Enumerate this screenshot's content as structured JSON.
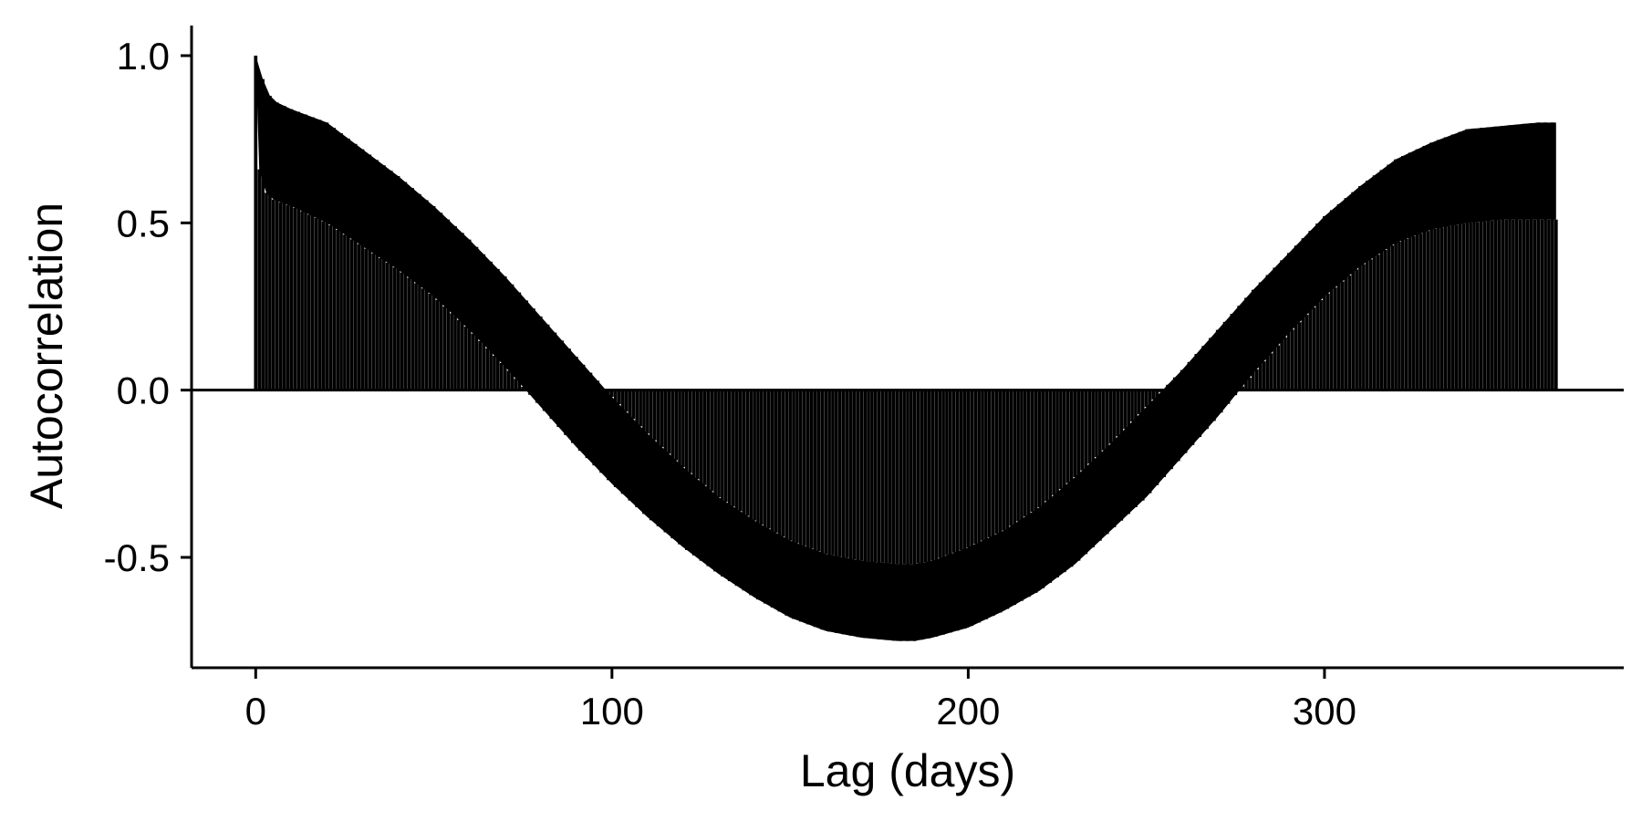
{
  "chart_data": {
    "type": "bar",
    "title": "",
    "xlabel": "Lag (days)",
    "ylabel": "Autocorrelation",
    "xlim": [
      -18,
      384
    ],
    "ylim": [
      -0.83,
      1.09
    ],
    "grid": false,
    "legend": "none",
    "bar_color": "#000000",
    "zero_line": 0,
    "x_ticks": [
      0,
      100,
      200,
      300
    ],
    "x_tick_labels": [
      "0",
      "100",
      "200",
      "300"
    ],
    "y_ticks": [
      -0.5,
      0.0,
      0.5,
      1.0
    ],
    "y_tick_labels": [
      "-0.5",
      "0.0",
      "0.5",
      "1.0"
    ],
    "lag_range": [
      0,
      365
    ],
    "seasonal_upper_envelope": {
      "x": [
        0,
        2,
        4,
        6,
        10,
        20,
        30,
        40,
        50,
        60,
        70,
        80,
        90,
        100,
        110,
        120,
        130,
        140,
        150,
        160,
        170,
        180,
        185,
        190,
        200,
        210,
        220,
        230,
        240,
        250,
        260,
        270,
        280,
        290,
        300,
        310,
        320,
        330,
        340,
        350,
        360,
        365
      ],
      "values": [
        1.0,
        0.93,
        0.88,
        0.86,
        0.84,
        0.8,
        0.72,
        0.64,
        0.55,
        0.45,
        0.34,
        0.22,
        0.1,
        -0.02,
        -0.13,
        -0.23,
        -0.32,
        -0.39,
        -0.45,
        -0.49,
        -0.51,
        -0.52,
        -0.52,
        -0.51,
        -0.47,
        -0.42,
        -0.35,
        -0.26,
        -0.16,
        -0.05,
        0.06,
        0.18,
        0.3,
        0.41,
        0.52,
        0.61,
        0.69,
        0.74,
        0.78,
        0.79,
        0.8,
        0.8
      ]
    },
    "weekly_lower_envelope": {
      "x": [
        0,
        1,
        2,
        3,
        5,
        10,
        20,
        30,
        40,
        50,
        60,
        70,
        80,
        90,
        100,
        110,
        120,
        130,
        140,
        150,
        160,
        170,
        180,
        185,
        190,
        200,
        210,
        220,
        230,
        240,
        250,
        260,
        270,
        280,
        290,
        300,
        310,
        320,
        330,
        340,
        350,
        360,
        365
      ],
      "values": [
        1.0,
        0.66,
        0.62,
        0.59,
        0.57,
        0.55,
        0.5,
        0.43,
        0.36,
        0.28,
        0.18,
        0.07,
        -0.05,
        -0.17,
        -0.28,
        -0.38,
        -0.47,
        -0.55,
        -0.62,
        -0.68,
        -0.72,
        -0.74,
        -0.75,
        -0.75,
        -0.74,
        -0.71,
        -0.66,
        -0.6,
        -0.52,
        -0.42,
        -0.32,
        -0.2,
        -0.08,
        0.05,
        0.17,
        0.28,
        0.37,
        0.44,
        0.48,
        0.5,
        0.51,
        0.51,
        0.51
      ]
    }
  }
}
